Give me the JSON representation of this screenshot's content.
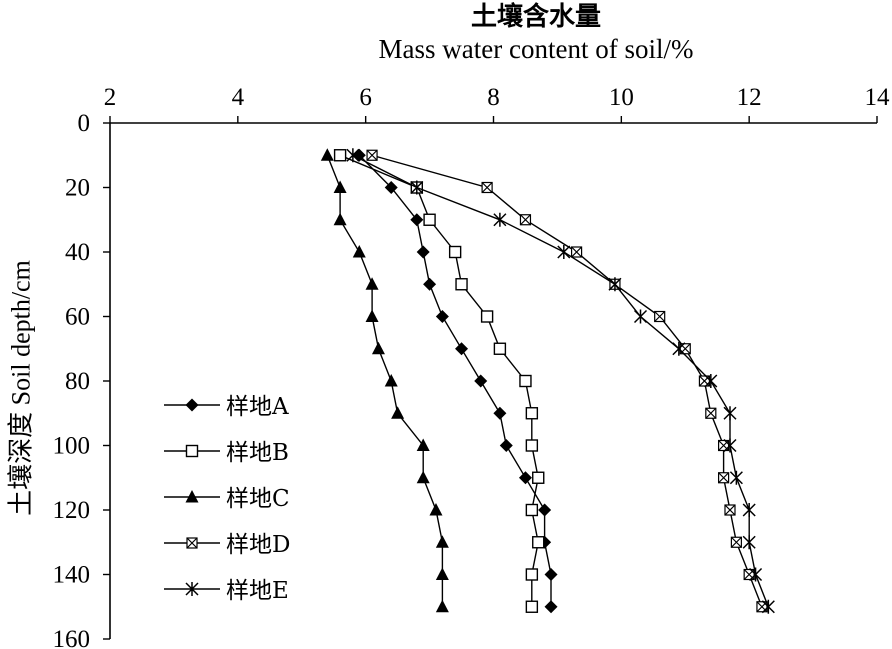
{
  "chart_data": {
    "type": "line",
    "title": "土壤含水量",
    "subtitle": "Mass water content of soil/%",
    "ylabel": "土壤深度 Soil depth/cm",
    "xlim": [
      2,
      14
    ],
    "ylim": [
      0,
      160
    ],
    "y_reversed": true,
    "x_axis_position": "top",
    "x_ticks": [
      2,
      4,
      6,
      8,
      10,
      12,
      14
    ],
    "y_ticks": [
      0,
      20,
      40,
      60,
      80,
      100,
      120,
      140,
      160
    ],
    "legend_position": "bottom-left",
    "grid": false,
    "series": [
      {
        "name": "样地A",
        "marker": "diamond-filled",
        "x": [
          5.9,
          6.4,
          6.8,
          6.9,
          7.0,
          7.2,
          7.5,
          7.8,
          8.1,
          8.2,
          8.5,
          8.8,
          8.8,
          8.9,
          8.9
        ],
        "y": [
          10,
          20,
          30,
          40,
          50,
          60,
          70,
          80,
          90,
          100,
          110,
          120,
          130,
          140,
          150
        ]
      },
      {
        "name": "样地B",
        "marker": "square-open",
        "x": [
          5.6,
          6.8,
          7.0,
          7.4,
          7.5,
          7.9,
          8.1,
          8.5,
          8.6,
          8.6,
          8.7,
          8.6,
          8.7,
          8.6,
          8.6
        ],
        "y": [
          10,
          20,
          30,
          40,
          50,
          60,
          70,
          80,
          90,
          100,
          110,
          120,
          130,
          140,
          150
        ]
      },
      {
        "name": "样地C",
        "marker": "triangle-filled",
        "x": [
          5.4,
          5.6,
          5.6,
          5.9,
          6.1,
          6.1,
          6.2,
          6.4,
          6.5,
          6.9,
          6.9,
          7.1,
          7.2,
          7.2,
          7.2
        ],
        "y": [
          10,
          20,
          30,
          40,
          50,
          60,
          70,
          80,
          90,
          100,
          110,
          120,
          130,
          140,
          150
        ]
      },
      {
        "name": "样地D",
        "marker": "x-square",
        "x": [
          6.1,
          7.9,
          8.5,
          9.3,
          9.9,
          10.6,
          11.0,
          11.3,
          11.4,
          11.6,
          11.6,
          11.7,
          11.8,
          12.0,
          12.2
        ],
        "y": [
          10,
          20,
          30,
          40,
          50,
          60,
          70,
          80,
          90,
          100,
          110,
          120,
          130,
          140,
          150
        ]
      },
      {
        "name": "样地E",
        "marker": "asterisk",
        "x": [
          5.8,
          6.8,
          8.1,
          9.1,
          9.9,
          10.3,
          10.9,
          11.4,
          11.7,
          11.7,
          11.8,
          12.0,
          12.0,
          12.1,
          12.3
        ],
        "y": [
          10,
          20,
          30,
          40,
          50,
          60,
          70,
          80,
          90,
          100,
          110,
          120,
          130,
          140,
          150
        ]
      }
    ]
  }
}
